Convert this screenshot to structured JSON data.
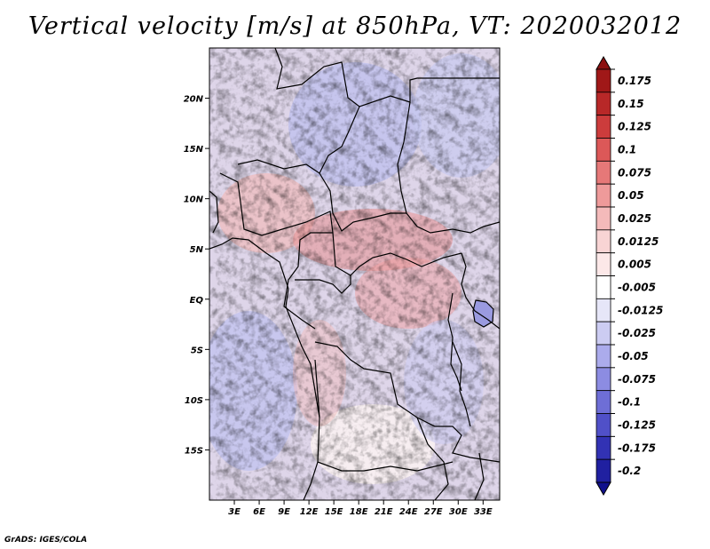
{
  "title": "Vertical velocity [m/s] at 850hPa, VT: 2020032012",
  "credit": "GrADS: IGES/COLA",
  "map": {
    "lon_range": [
      0,
      35
    ],
    "lat_range": [
      -20,
      25
    ],
    "lat_ticks": [
      {
        "lat": 20,
        "label": "20N"
      },
      {
        "lat": 15,
        "label": "15N"
      },
      {
        "lat": 10,
        "label": "10N"
      },
      {
        "lat": 5,
        "label": "5N"
      },
      {
        "lat": 0,
        "label": "EQ"
      },
      {
        "lat": -5,
        "label": "5S"
      },
      {
        "lat": -10,
        "label": "10S"
      },
      {
        "lat": -15,
        "label": "15S"
      }
    ],
    "lon_ticks": [
      {
        "lon": 3,
        "label": "3E"
      },
      {
        "lon": 6,
        "label": "6E"
      },
      {
        "lon": 9,
        "label": "9E"
      },
      {
        "lon": 12,
        "label": "12E"
      },
      {
        "lon": 15,
        "label": "15E"
      },
      {
        "lon": 18,
        "label": "18E"
      },
      {
        "lon": 21,
        "label": "21E"
      },
      {
        "lon": 24,
        "label": "24E"
      },
      {
        "lon": 27,
        "label": "27E"
      },
      {
        "lon": 30,
        "label": "30E"
      },
      {
        "lon": 33,
        "label": "33E"
      }
    ]
  },
  "colorbar": {
    "levels": [
      {
        "label": "0.175",
        "color": "#a01818"
      },
      {
        "label": "0.15",
        "color": "#b82828"
      },
      {
        "label": "0.125",
        "color": "#cc3c3c"
      },
      {
        "label": "0.1",
        "color": "#dc5858"
      },
      {
        "label": "0.075",
        "color": "#e67878"
      },
      {
        "label": "0.05",
        "color": "#ee9a9a"
      },
      {
        "label": "0.025",
        "color": "#f4baba"
      },
      {
        "label": "0.0125",
        "color": "#f8d4d4"
      },
      {
        "label": "0.005",
        "color": "#fce8e8"
      },
      {
        "label": "-0.005",
        "color": "#ffffff"
      },
      {
        "label": "-0.0125",
        "color": "#e6e6f8"
      },
      {
        "label": "-0.025",
        "color": "#ccccf2"
      },
      {
        "label": "-0.05",
        "color": "#ababec"
      },
      {
        "label": "-0.075",
        "color": "#8c8ce2"
      },
      {
        "label": "-0.1",
        "color": "#6e6ed6"
      },
      {
        "label": "-0.125",
        "color": "#5050c8"
      },
      {
        "label": "-0.175",
        "color": "#3232b4"
      },
      {
        "label": "-0.2",
        "color": "#2020a0"
      }
    ],
    "top_color": "#8c1010",
    "bottom_color": "#10108c"
  }
}
